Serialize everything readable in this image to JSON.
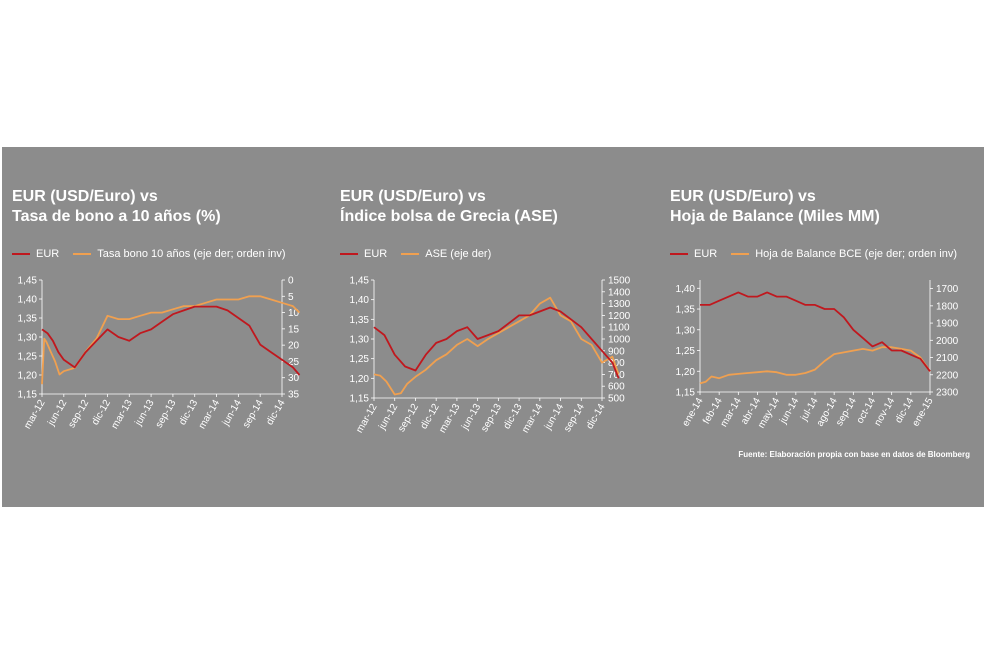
{
  "colors": {
    "background": "#8c8c8c",
    "eur": "#c0181e",
    "secondary": "#f0a050",
    "text": "#ffffff"
  },
  "source": "Fuente: Elaboración propia con base en datos de Bloomberg",
  "chart_data": [
    {
      "type": "line",
      "title_line1": "EUR (USD/Euro) vs",
      "title_line2": "Tasa de bono a 10 años (%)",
      "legend": [
        "EUR",
        "Tasa bono 10 años (eje der; orden inv)"
      ],
      "x_ticks": [
        "mar-12",
        "jun-12",
        "sep-12",
        "dic-12",
        "mar-13",
        "jun-13",
        "sep-13",
        "dic-13",
        "mar-14",
        "jun-14",
        "sep-14",
        "dic-14"
      ],
      "y_left": {
        "ticks": [
          "1,15",
          "1,20",
          "1,25",
          "1,30",
          "1,35",
          "1,40",
          "1,45"
        ],
        "min": 1.15,
        "max": 1.45
      },
      "y_right": {
        "ticks": [
          "0",
          "5",
          "10",
          "15",
          "20",
          "25",
          "30",
          "35"
        ],
        "min": 0,
        "max": 35,
        "inverted": true
      },
      "series": [
        {
          "name": "EUR",
          "axis": "left",
          "x": [
            0,
            0.25,
            0.5,
            0.75,
            1,
            1.5,
            2,
            2.5,
            3,
            3.5,
            4,
            4.5,
            5,
            5.5,
            6,
            6.5,
            7,
            7.5,
            8,
            8.5,
            9,
            9.5,
            10,
            10.5,
            11,
            11.5,
            11.8
          ],
          "y": [
            1.32,
            1.31,
            1.29,
            1.26,
            1.24,
            1.22,
            1.26,
            1.29,
            1.32,
            1.3,
            1.29,
            1.31,
            1.32,
            1.34,
            1.36,
            1.37,
            1.38,
            1.38,
            1.38,
            1.37,
            1.35,
            1.33,
            1.28,
            1.26,
            1.24,
            1.22,
            1.2
          ]
        },
        {
          "name": "Tasa bono 10 años (eje der; orden inv)",
          "axis": "right",
          "x": [
            0,
            0.1,
            0.2,
            0.4,
            0.6,
            0.8,
            1,
            1.5,
            2,
            2.5,
            3,
            3.5,
            4,
            4.5,
            5,
            5.5,
            6,
            6.5,
            7,
            7.5,
            8,
            8.5,
            9,
            9.5,
            10,
            10.5,
            11,
            11.5,
            11.8
          ],
          "y": [
            32,
            18,
            19,
            22,
            25,
            29,
            28,
            27,
            22,
            18,
            11,
            12,
            12,
            11,
            10,
            10,
            9,
            8,
            8,
            7,
            6,
            6,
            6,
            5,
            5,
            6,
            7,
            8,
            10
          ]
        }
      ]
    },
    {
      "type": "line",
      "title_line1": "EUR (USD/Euro) vs",
      "title_line2": "Índice bolsa de Grecia (ASE)",
      "legend": [
        "EUR",
        "ASE (eje der)"
      ],
      "x_ticks": [
        "mar-12",
        "jun-12",
        "sep-12",
        "dic-12",
        "mar-13",
        "jun-13",
        "sep-13",
        "dic-13",
        "mar-14",
        "jun-14",
        "sep-14",
        "dic-14"
      ],
      "y_left": {
        "ticks": [
          "1,15",
          "1,20",
          "1,25",
          "1,30",
          "1,35",
          "1,40",
          "1,45"
        ],
        "min": 1.15,
        "max": 1.45
      },
      "y_right": {
        "ticks": [
          "500",
          "600",
          "700",
          "800",
          "900",
          "1000",
          "1100",
          "1200",
          "1300",
          "1400",
          "1500"
        ],
        "min": 500,
        "max": 1500
      },
      "series": [
        {
          "name": "EUR",
          "axis": "left",
          "x": [
            0,
            0.5,
            1,
            1.5,
            2,
            2.5,
            3,
            3.5,
            4,
            4.5,
            5,
            5.5,
            6,
            6.5,
            7,
            7.5,
            8,
            8.5,
            9,
            9.5,
            10,
            10.5,
            11,
            11.5,
            11.8
          ],
          "y": [
            1.33,
            1.31,
            1.26,
            1.23,
            1.22,
            1.26,
            1.29,
            1.3,
            1.32,
            1.33,
            1.3,
            1.31,
            1.32,
            1.34,
            1.36,
            1.36,
            1.37,
            1.38,
            1.37,
            1.35,
            1.33,
            1.3,
            1.27,
            1.24,
            1.2
          ]
        },
        {
          "name": "ASE (eje der)",
          "axis": "right",
          "x": [
            0,
            0.3,
            0.6,
            1,
            1.3,
            1.6,
            2,
            2.5,
            3,
            3.5,
            4,
            4.5,
            5,
            5.5,
            6,
            6.5,
            7,
            7.5,
            8,
            8.5,
            9,
            9.5,
            10,
            10.5,
            11,
            11.5,
            11.8
          ],
          "y": [
            700,
            690,
            640,
            530,
            540,
            620,
            680,
            740,
            820,
            870,
            950,
            1000,
            940,
            1000,
            1050,
            1100,
            1150,
            1200,
            1300,
            1350,
            1200,
            1150,
            1000,
            950,
            800,
            850,
            700
          ]
        }
      ]
    },
    {
      "type": "line",
      "title_line1": "EUR (USD/Euro) vs",
      "title_line2": "Hoja de Balance (Miles MM)",
      "legend": [
        "EUR",
        "Hoja de Balance BCE (eje der; orden inv)"
      ],
      "x_ticks": [
        "ene-14",
        "feb-14",
        "mar-14",
        "abr-14",
        "may-14",
        "jun-14",
        "jul-14",
        "ago-14",
        "sep-14",
        "oct-14",
        "nov-14",
        "dic-14",
        "ene-15"
      ],
      "y_left": {
        "ticks": [
          "1,15",
          "1,20",
          "1,25",
          "1,30",
          "1,35",
          "1,40"
        ],
        "min": 1.15,
        "max": 1.42
      },
      "y_right": {
        "ticks": [
          "1700",
          "1800",
          "1900",
          "2000",
          "2100",
          "2200",
          "2300"
        ],
        "min": 1650,
        "max": 2300,
        "inverted": true
      },
      "series": [
        {
          "name": "EUR",
          "axis": "left",
          "x": [
            0,
            0.5,
            1,
            1.5,
            2,
            2.5,
            3,
            3.5,
            4,
            4.5,
            5,
            5.5,
            6,
            6.5,
            7,
            7.5,
            8,
            8.5,
            9,
            9.5,
            10,
            10.5,
            11,
            11.5,
            12
          ],
          "y": [
            1.36,
            1.36,
            1.37,
            1.38,
            1.39,
            1.38,
            1.38,
            1.39,
            1.38,
            1.38,
            1.37,
            1.36,
            1.36,
            1.35,
            1.35,
            1.33,
            1.3,
            1.28,
            1.26,
            1.27,
            1.25,
            1.25,
            1.24,
            1.23,
            1.2
          ]
        },
        {
          "name": "Hoja de Balance BCE (eje der; orden inv)",
          "axis": "right",
          "x": [
            0,
            0.3,
            0.6,
            1,
            1.5,
            2,
            2.5,
            3,
            3.5,
            4,
            4.5,
            5,
            5.5,
            6,
            6.5,
            7,
            7.5,
            8,
            8.5,
            9,
            9.5,
            10,
            10.5,
            11,
            11.5,
            12
          ],
          "y": [
            2250,
            2240,
            2210,
            2220,
            2200,
            2195,
            2190,
            2185,
            2180,
            2185,
            2200,
            2200,
            2190,
            2170,
            2120,
            2080,
            2070,
            2060,
            2050,
            2060,
            2040,
            2040,
            2050,
            2060,
            2100,
            2180
          ]
        }
      ]
    }
  ]
}
